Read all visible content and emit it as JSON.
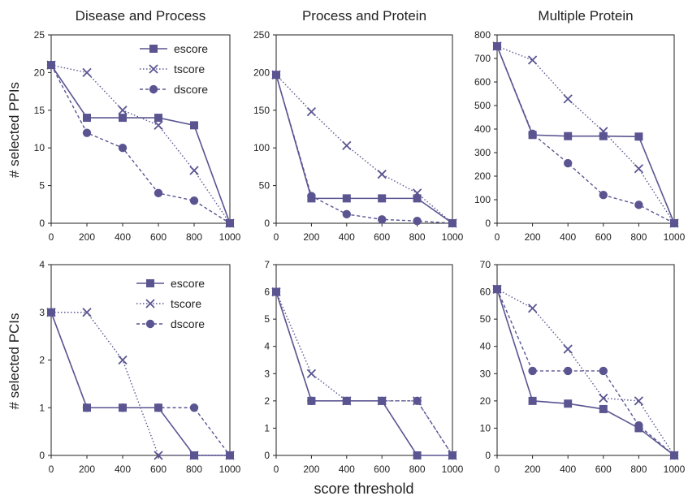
{
  "colors": {
    "series": "#5a5591",
    "axis": "#222222"
  },
  "figure": {
    "xlabel": "score threshold",
    "row_ylabels": [
      "# selected PPIs",
      "# selected PCIs"
    ]
  },
  "chart_data": [
    {
      "type": "line",
      "row": 0,
      "col": 0,
      "title": "Disease and Process",
      "x": [
        0,
        200,
        400,
        600,
        800,
        1000
      ],
      "xlim": [
        0,
        1000
      ],
      "ylim": [
        0,
        25
      ],
      "yticks": [
        0,
        5,
        10,
        15,
        20,
        25
      ],
      "legend": "top-right",
      "series": [
        {
          "name": "escore",
          "values": [
            21,
            14,
            14,
            14,
            13,
            0
          ]
        },
        {
          "name": "tscore",
          "values": [
            21,
            20,
            15,
            13,
            7,
            0
          ]
        },
        {
          "name": "dscore",
          "values": [
            21,
            12,
            10,
            4,
            3,
            0
          ]
        }
      ]
    },
    {
      "type": "line",
      "row": 0,
      "col": 1,
      "title": "Process and Protein",
      "x": [
        0,
        200,
        400,
        600,
        800,
        1000
      ],
      "xlim": [
        0,
        1000
      ],
      "ylim": [
        0,
        250
      ],
      "yticks": [
        0,
        50,
        100,
        150,
        200,
        250
      ],
      "legend": "none",
      "series": [
        {
          "name": "escore",
          "values": [
            197,
            33,
            33,
            33,
            33,
            0
          ]
        },
        {
          "name": "tscore",
          "values": [
            197,
            148,
            103,
            65,
            40,
            0
          ]
        },
        {
          "name": "dscore",
          "values": [
            197,
            36,
            12,
            5,
            3,
            0
          ]
        }
      ]
    },
    {
      "type": "line",
      "row": 0,
      "col": 2,
      "title": "Multiple Protein",
      "x": [
        0,
        200,
        400,
        600,
        800,
        1000
      ],
      "xlim": [
        0,
        1000
      ],
      "ylim": [
        0,
        800
      ],
      "yticks": [
        0,
        100,
        200,
        300,
        400,
        500,
        600,
        700,
        800
      ],
      "legend": "none",
      "series": [
        {
          "name": "escore",
          "values": [
            752,
            375,
            370,
            370,
            368,
            0
          ]
        },
        {
          "name": "tscore",
          "values": [
            752,
            693,
            528,
            390,
            232,
            0
          ]
        },
        {
          "name": "dscore",
          "values": [
            752,
            380,
            255,
            120,
            78,
            0
          ]
        }
      ]
    },
    {
      "type": "line",
      "row": 1,
      "col": 0,
      "title": "",
      "x": [
        0,
        200,
        400,
        600,
        800,
        1000
      ],
      "xlim": [
        0,
        1000
      ],
      "ylim": [
        0,
        4
      ],
      "yticks": [
        0,
        1,
        2,
        3,
        4
      ],
      "legend": "top-right",
      "series": [
        {
          "name": "escore",
          "values": [
            3,
            1,
            1,
            1,
            0,
            0
          ]
        },
        {
          "name": "tscore",
          "values": [
            3,
            3,
            2,
            0,
            0,
            0
          ]
        },
        {
          "name": "dscore",
          "values": [
            3,
            1,
            1,
            1,
            1,
            0
          ]
        }
      ]
    },
    {
      "type": "line",
      "row": 1,
      "col": 1,
      "title": "",
      "x": [
        0,
        200,
        400,
        600,
        800,
        1000
      ],
      "xlim": [
        0,
        1000
      ],
      "ylim": [
        0,
        7
      ],
      "yticks": [
        0,
        1,
        2,
        3,
        4,
        5,
        6,
        7
      ],
      "legend": "none",
      "series": [
        {
          "name": "escore",
          "values": [
            6,
            2,
            2,
            2,
            0,
            0
          ]
        },
        {
          "name": "tscore",
          "values": [
            6,
            3,
            2,
            2,
            2,
            0
          ]
        },
        {
          "name": "dscore",
          "values": [
            6,
            2,
            2,
            2,
            2,
            0
          ]
        }
      ]
    },
    {
      "type": "line",
      "row": 1,
      "col": 2,
      "title": "",
      "x": [
        0,
        200,
        400,
        600,
        800,
        1000
      ],
      "xlim": [
        0,
        1000
      ],
      "ylim": [
        0,
        70
      ],
      "yticks": [
        0,
        10,
        20,
        30,
        40,
        50,
        60,
        70
      ],
      "legend": "none",
      "series": [
        {
          "name": "escore",
          "values": [
            61,
            20,
            19,
            17,
            10,
            0
          ]
        },
        {
          "name": "tscore",
          "values": [
            61,
            54,
            39,
            21,
            20,
            0
          ]
        },
        {
          "name": "dscore",
          "values": [
            61,
            31,
            31,
            31,
            11,
            0
          ]
        }
      ]
    }
  ]
}
